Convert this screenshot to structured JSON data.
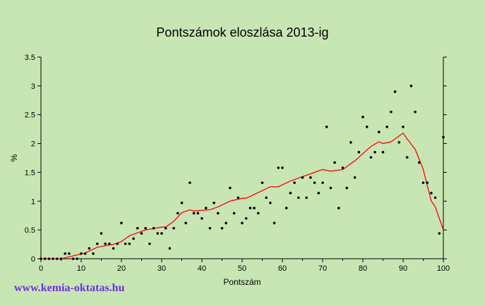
{
  "chart_data": {
    "type": "scatter",
    "title": "Pontszámok eloszlása 2013-ig",
    "xlabel": "Pontszám",
    "ylabel": "%",
    "xlim": [
      0,
      100
    ],
    "ylim": [
      0,
      3.5
    ],
    "xticks": [
      0,
      10,
      20,
      30,
      40,
      50,
      60,
      70,
      80,
      90,
      100
    ],
    "yticks": [
      0,
      0.5,
      1,
      1.5,
      2,
      2.5,
      3,
      3.5
    ],
    "ytick_labels": [
      "0",
      "0.5",
      "1",
      "1.5",
      "2",
      "2.5",
      "3",
      "3.5"
    ],
    "grid": false,
    "colors": {
      "points": "#000000",
      "trend": "#ff0000",
      "background": "#c8e6b4"
    },
    "points": [
      0,
      0,
      0,
      0,
      0,
      0,
      0.09,
      0.09,
      0,
      0,
      0.09,
      0.09,
      0.18,
      0.09,
      0.26,
      0.44,
      0.26,
      0.26,
      0.18,
      0.26,
      0.62,
      0.26,
      0.26,
      0.35,
      0.53,
      0.44,
      0.53,
      0.26,
      0.53,
      0.44,
      0.44,
      0.53,
      0.18,
      0.53,
      0.79,
      0.97,
      0.62,
      1.32,
      0.79,
      0.79,
      0.7,
      0.88,
      0.53,
      0.97,
      0.79,
      0.53,
      0.62,
      1.23,
      0.79,
      1.06,
      0.62,
      0.7,
      0.88,
      0.88,
      0.79,
      1.32,
      1.06,
      0.97,
      0.62,
      1.58,
      1.58,
      0.88,
      1.14,
      1.32,
      1.06,
      1.41,
      1.06,
      1.41,
      1.32,
      1.14,
      1.32,
      2.29,
      1.23,
      1.67,
      0.88,
      1.58,
      1.23,
      2.02,
      1.41,
      1.85,
      2.46,
      2.29,
      1.76,
      1.85,
      2.2,
      1.85,
      2.29,
      2.55,
      2.9,
      2.02,
      2.29,
      1.76,
      3.0,
      2.55,
      1.67,
      1.32,
      1.32,
      1.14,
      1.06,
      0.44,
      2.11
    ],
    "trend": [
      [
        0,
        0
      ],
      [
        5,
        0
      ],
      [
        8,
        0.05
      ],
      [
        11,
        0.1
      ],
      [
        14,
        0.2
      ],
      [
        18,
        0.25
      ],
      [
        20,
        0.3
      ],
      [
        22,
        0.4
      ],
      [
        26,
        0.5
      ],
      [
        30,
        0.55
      ],
      [
        31,
        0.55
      ],
      [
        33,
        0.65
      ],
      [
        35,
        0.8
      ],
      [
        37,
        0.85
      ],
      [
        38,
        0.83
      ],
      [
        42,
        0.85
      ],
      [
        44,
        0.9
      ],
      [
        47,
        1.0
      ],
      [
        50,
        1.05
      ],
      [
        51,
        1.05
      ],
      [
        54,
        1.15
      ],
      [
        57,
        1.25
      ],
      [
        59,
        1.25
      ],
      [
        62,
        1.35
      ],
      [
        66,
        1.45
      ],
      [
        70,
        1.55
      ],
      [
        72,
        1.52
      ],
      [
        75,
        1.55
      ],
      [
        78,
        1.7
      ],
      [
        82,
        1.95
      ],
      [
        84,
        2.03
      ],
      [
        85,
        2.0
      ],
      [
        87,
        2.03
      ],
      [
        90,
        2.18
      ],
      [
        91,
        2.08
      ],
      [
        93,
        1.9
      ],
      [
        95,
        1.55
      ],
      [
        97,
        1.0
      ],
      [
        98,
        0.9
      ],
      [
        100,
        0.5
      ]
    ]
  },
  "footer": {
    "link": "www.kemia-oktatas.hu"
  }
}
